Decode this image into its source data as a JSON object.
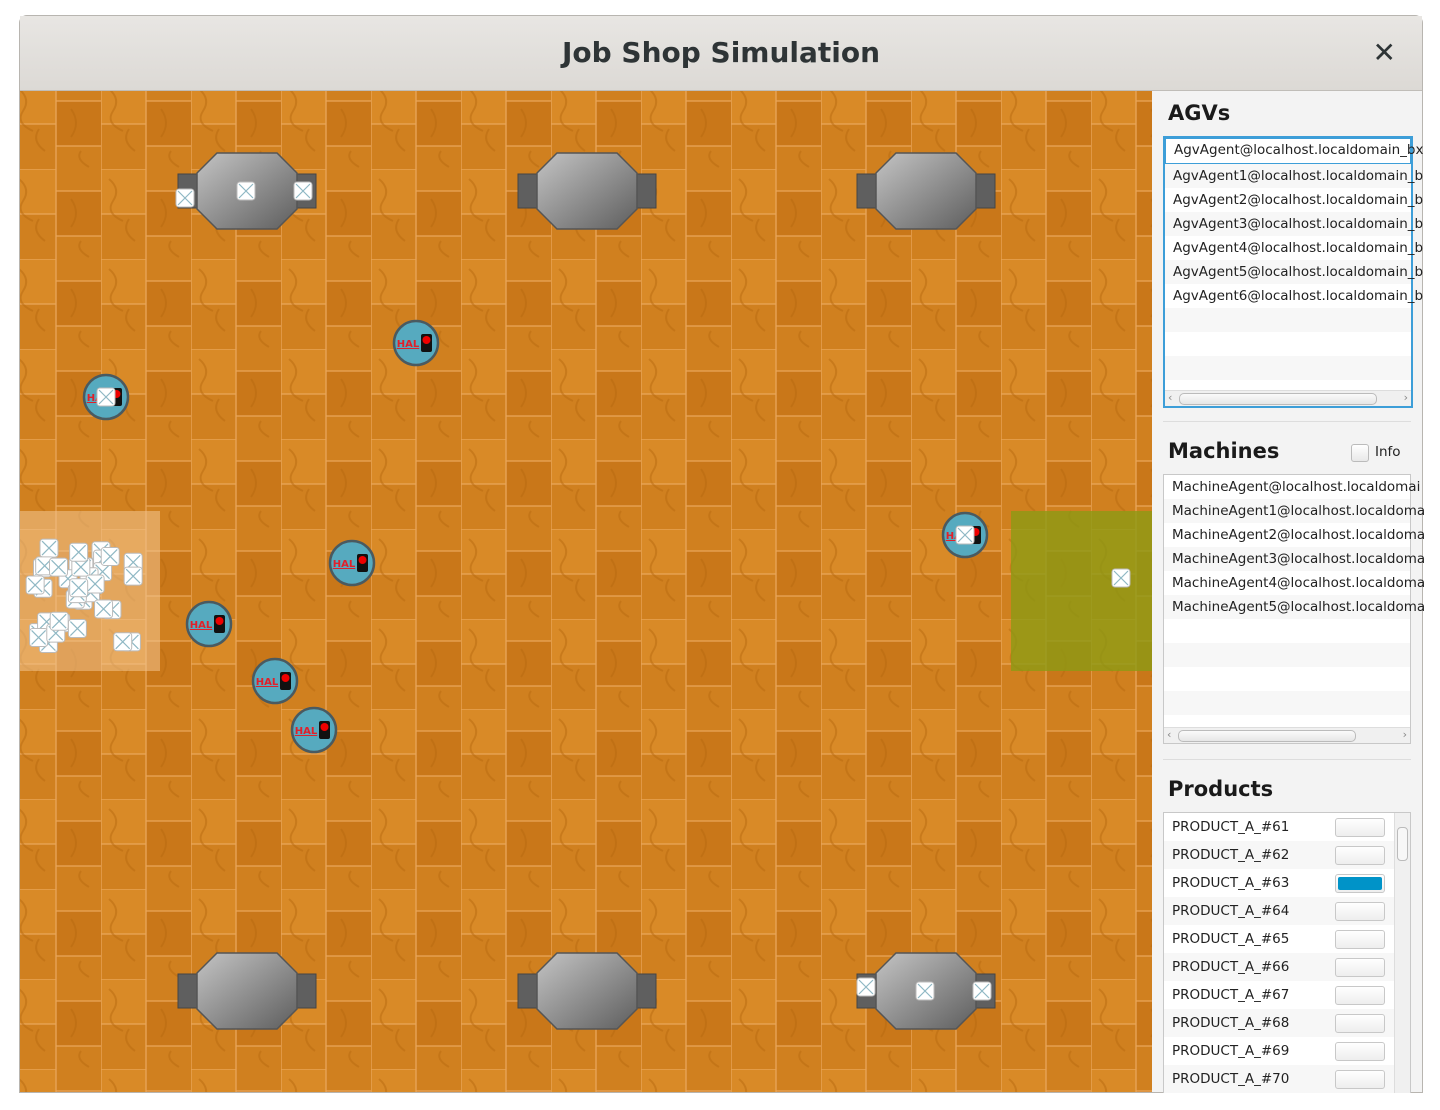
{
  "window": {
    "title": "Job Shop Simulation",
    "close_icon": "close-icon"
  },
  "colors": {
    "floor": "#d17f1e",
    "agv": "#56aabf",
    "machine": "#8a8a8a",
    "target_zone": "#8c9a14",
    "accent": "#0093c8"
  },
  "agvs": {
    "title": "AGVs",
    "items": [
      "AgvAgent@localhost.localdomain_bx",
      "AgvAgent1@localhost.localdomain_b",
      "AgvAgent2@localhost.localdomain_b",
      "AgvAgent3@localhost.localdomain_b",
      "AgvAgent4@localhost.localdomain_b",
      "AgvAgent5@localhost.localdomain_b",
      "AgvAgent6@localhost.localdomain_b"
    ],
    "selected_index": 0
  },
  "machines": {
    "title": "Machines",
    "info_label": "Info",
    "info_checked": false,
    "items": [
      "MachineAgent@localhost.localdomai",
      "MachineAgent1@localhost.localdoma",
      "MachineAgent2@localhost.localdoma",
      "MachineAgent3@localhost.localdoma",
      "MachineAgent4@localhost.localdoma",
      "MachineAgent5@localhost.localdoma"
    ]
  },
  "products": {
    "title": "Products",
    "items": [
      {
        "name": "PRODUCT_A_#61",
        "progress": 0
      },
      {
        "name": "PRODUCT_A_#62",
        "progress": 0
      },
      {
        "name": "PRODUCT_A_#63",
        "progress": 1
      },
      {
        "name": "PRODUCT_A_#64",
        "progress": 0
      },
      {
        "name": "PRODUCT_A_#65",
        "progress": 0
      },
      {
        "name": "PRODUCT_A_#66",
        "progress": 0
      },
      {
        "name": "PRODUCT_A_#67",
        "progress": 0
      },
      {
        "name": "PRODUCT_A_#68",
        "progress": 0
      },
      {
        "name": "PRODUCT_A_#69",
        "progress": 0
      },
      {
        "name": "PRODUCT_A_#70",
        "progress": 0
      }
    ]
  },
  "floor": {
    "agv_label": "HAL",
    "agv_count": 7,
    "machine_count": 6
  }
}
